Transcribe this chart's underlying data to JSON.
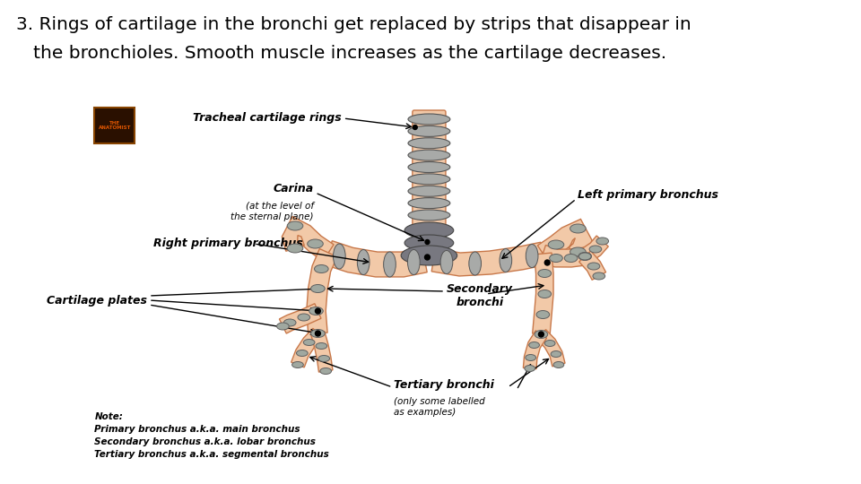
{
  "title_line1": "3. Rings of cartilage in the bronchi get replaced by strips that disappear in",
  "title_line2": "   the bronchioles. Smooth muscle increases as the cartilage decreases.",
  "title_fontsize": 14.5,
  "background_color": "#ffffff",
  "bronchi_fill": "#f2c9a8",
  "bronchi_edge": "#c8784a",
  "cartilage_ring_color": "#a8aaa8",
  "cartilage_plate_color": "#a0a8a0",
  "cartilage_dark": "#787880",
  "note_text": "Note:\nPrimary bronchus a.k.a. main bronchus\nSecondary bronchus a.k.a. lobar bronchus\nTertiary bronchus a.k.a. segmental bronchus"
}
